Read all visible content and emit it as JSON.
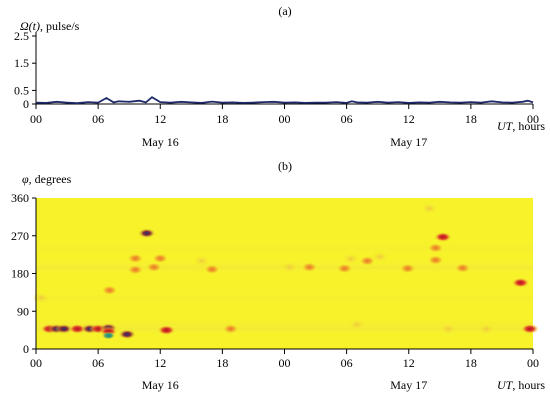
{
  "chart_data": [
    {
      "type": "line",
      "panel_label": "(a)",
      "ylabel_symbol": "Ω(t)",
      "ylabel_unit": ", pulse/s",
      "xlabel_symbol": "UT",
      "xlabel_unit": ", hours",
      "ylim": [
        0,
        2.5
      ],
      "yticks": [
        "0",
        "0.5",
        "1.5",
        "2.5"
      ],
      "ytick_values": [
        0,
        0.5,
        1.5,
        2.5
      ],
      "xticks": [
        "00",
        "06",
        "12",
        "18",
        "00",
        "06",
        "12",
        "18",
        "00"
      ],
      "xlim_hours": [
        0,
        48
      ],
      "day_labels": [
        {
          "label": "May 16",
          "center_hour": 12
        },
        {
          "label": "May 17",
          "center_hour": 36
        }
      ],
      "line_color": "#1f2a6b",
      "series": [
        {
          "x_hours": [
            0,
            1,
            2,
            3,
            4,
            5,
            6,
            6.8,
            7.5,
            8,
            9,
            10,
            10.6,
            11.2,
            12,
            13,
            14,
            15,
            16,
            17,
            18,
            19,
            20,
            21,
            22,
            23,
            24,
            25,
            26,
            27,
            28,
            29,
            30,
            30.5,
            31,
            32,
            33,
            34,
            35,
            36,
            37,
            38,
            39,
            40,
            41,
            42,
            43,
            44,
            45,
            46,
            47,
            47.5,
            48
          ],
          "y": [
            0.05,
            0.04,
            0.08,
            0.05,
            0.03,
            0.07,
            0.05,
            0.22,
            0.06,
            0.1,
            0.08,
            0.12,
            0.06,
            0.25,
            0.07,
            0.05,
            0.08,
            0.06,
            0.04,
            0.09,
            0.05,
            0.06,
            0.04,
            0.05,
            0.07,
            0.08,
            0.05,
            0.06,
            0.04,
            0.05,
            0.05,
            0.07,
            0.04,
            0.1,
            0.06,
            0.05,
            0.08,
            0.05,
            0.07,
            0.04,
            0.06,
            0.05,
            0.08,
            0.06,
            0.05,
            0.07,
            0.05,
            0.1,
            0.06,
            0.05,
            0.08,
            0.12,
            0.06
          ]
        }
      ]
    },
    {
      "type": "heatmap",
      "panel_label": "(b)",
      "ylabel_symbol": "φ",
      "ylabel_unit": ", degrees",
      "xlabel_symbol": "UT",
      "xlabel_unit": ", hours",
      "ylim": [
        0,
        360
      ],
      "yticks": [
        "0",
        "90",
        "180",
        "270",
        "360"
      ],
      "ytick_values": [
        0,
        90,
        180,
        270,
        360
      ],
      "xticks": [
        "00",
        "06",
        "12",
        "18",
        "00",
        "06",
        "12",
        "18",
        "00"
      ],
      "xlim_hours": [
        0,
        48
      ],
      "day_labels": [
        {
          "label": "May 16",
          "center_hour": 12
        },
        {
          "label": "May 17",
          "center_hour": 36
        }
      ],
      "background_color": "#f7f22a",
      "spots": [
        {
          "t": 1.3,
          "phi": 48,
          "level": "red"
        },
        {
          "t": 2.0,
          "phi": 48,
          "level": "blue"
        },
        {
          "t": 2.7,
          "phi": 48,
          "level": "blue"
        },
        {
          "t": 4.0,
          "phi": 48,
          "level": "red"
        },
        {
          "t": 5.2,
          "phi": 48,
          "level": "blue"
        },
        {
          "t": 6.0,
          "phi": 48,
          "level": "red"
        },
        {
          "t": 7.0,
          "phi": 50,
          "level": "blue"
        },
        {
          "t": 7.0,
          "phi": 42,
          "level": "red"
        },
        {
          "t": 7.0,
          "phi": 32,
          "level": "teal"
        },
        {
          "t": 8.8,
          "phi": 35,
          "level": "blue"
        },
        {
          "t": 7.1,
          "phi": 140,
          "level": "orange"
        },
        {
          "t": 9.6,
          "phi": 189,
          "level": "orange"
        },
        {
          "t": 9.6,
          "phi": 216,
          "level": "orange"
        },
        {
          "t": 10.7,
          "phi": 276,
          "level": "blue"
        },
        {
          "t": 11.4,
          "phi": 195,
          "level": "orange"
        },
        {
          "t": 12.0,
          "phi": 216,
          "level": "orange"
        },
        {
          "t": 12.6,
          "phi": 45,
          "level": "red"
        },
        {
          "t": 16.0,
          "phi": 210,
          "level": "light"
        },
        {
          "t": 17.0,
          "phi": 190,
          "level": "orange"
        },
        {
          "t": 18.8,
          "phi": 48,
          "level": "orange"
        },
        {
          "t": 0.5,
          "phi": 122,
          "level": "light"
        },
        {
          "t": 24.5,
          "phi": 195,
          "level": "light"
        },
        {
          "t": 26.4,
          "phi": 195,
          "level": "orange"
        },
        {
          "t": 29.8,
          "phi": 192,
          "level": "orange"
        },
        {
          "t": 30.4,
          "phi": 215,
          "level": "light"
        },
        {
          "t": 32.0,
          "phi": 210,
          "level": "orange"
        },
        {
          "t": 33.2,
          "phi": 220,
          "level": "light"
        },
        {
          "t": 35.9,
          "phi": 192,
          "level": "orange"
        },
        {
          "t": 38.6,
          "phi": 212,
          "level": "orange"
        },
        {
          "t": 38.6,
          "phi": 241,
          "level": "orange"
        },
        {
          "t": 39.3,
          "phi": 267,
          "level": "red"
        },
        {
          "t": 38.0,
          "phi": 335,
          "level": "light"
        },
        {
          "t": 41.2,
          "phi": 193,
          "level": "orange"
        },
        {
          "t": 46.8,
          "phi": 158,
          "level": "red"
        },
        {
          "t": 47.7,
          "phi": 48,
          "level": "red"
        },
        {
          "t": 31.0,
          "phi": 58,
          "level": "light"
        },
        {
          "t": 43.5,
          "phi": 48,
          "level": "light"
        },
        {
          "t": 39.8,
          "phi": 48,
          "level": "light"
        }
      ]
    }
  ]
}
